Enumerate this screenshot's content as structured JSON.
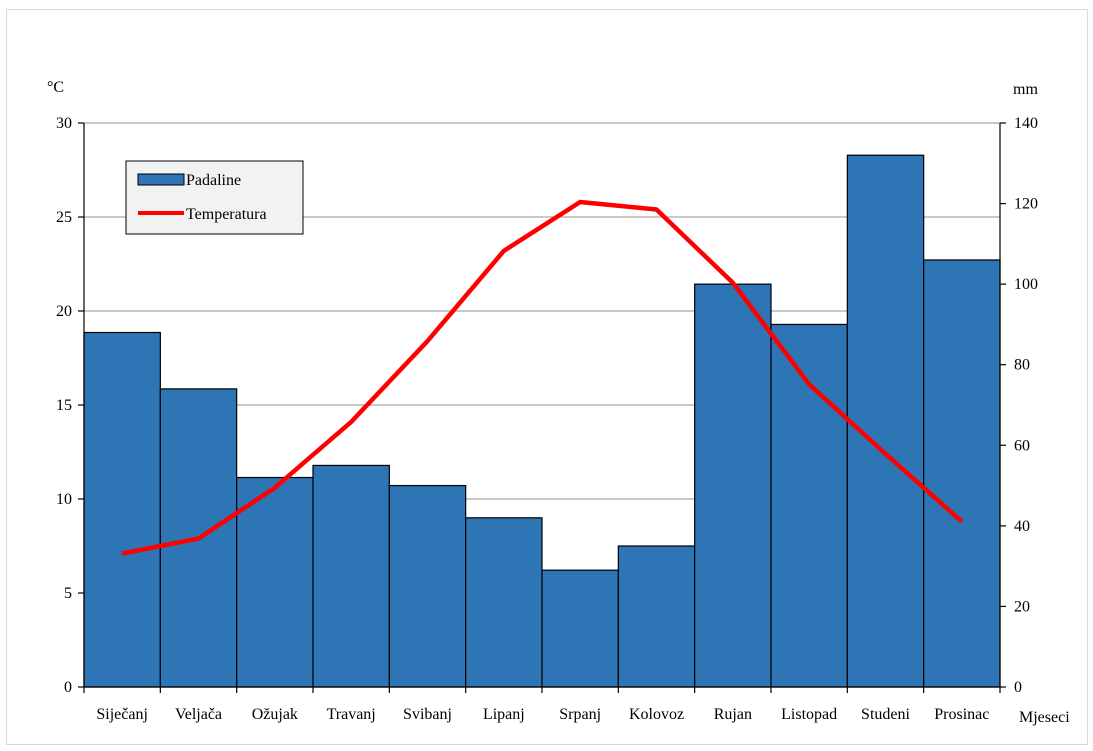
{
  "chart_data": {
    "type": "bar+line",
    "categories": [
      "Siječanj",
      "Veljača",
      "Ožujak",
      "Travanj",
      "Svibanj",
      "Lipanj",
      "Srpanj",
      "Kolovoz",
      "Rujan",
      "Listopad",
      "Studeni",
      "Prosinac"
    ],
    "xlabel": "Mjeseci",
    "series": [
      {
        "name": "Padaline",
        "type": "bar",
        "axis": "right",
        "color": "#2e75b6",
        "values": [
          88,
          74,
          52,
          55,
          50,
          42,
          29,
          35,
          100,
          90,
          132,
          106
        ]
      },
      {
        "name": "Temperatura",
        "type": "line",
        "axis": "left",
        "color": "#ff0000",
        "values": [
          7.1,
          7.9,
          10.6,
          14.1,
          18.4,
          23.2,
          25.8,
          25.4,
          21.5,
          16.1,
          12.4,
          8.8
        ]
      }
    ],
    "y_left": {
      "label": "°C",
      "min": 0,
      "max": 30,
      "ticks": [
        0,
        5,
        10,
        15,
        20,
        25,
        30
      ]
    },
    "y_right": {
      "label": "mm",
      "min": 0,
      "max": 140,
      "ticks": [
        0,
        20,
        40,
        60,
        80,
        100,
        120,
        140
      ]
    },
    "grid": true,
    "legend_position": "top-left"
  }
}
